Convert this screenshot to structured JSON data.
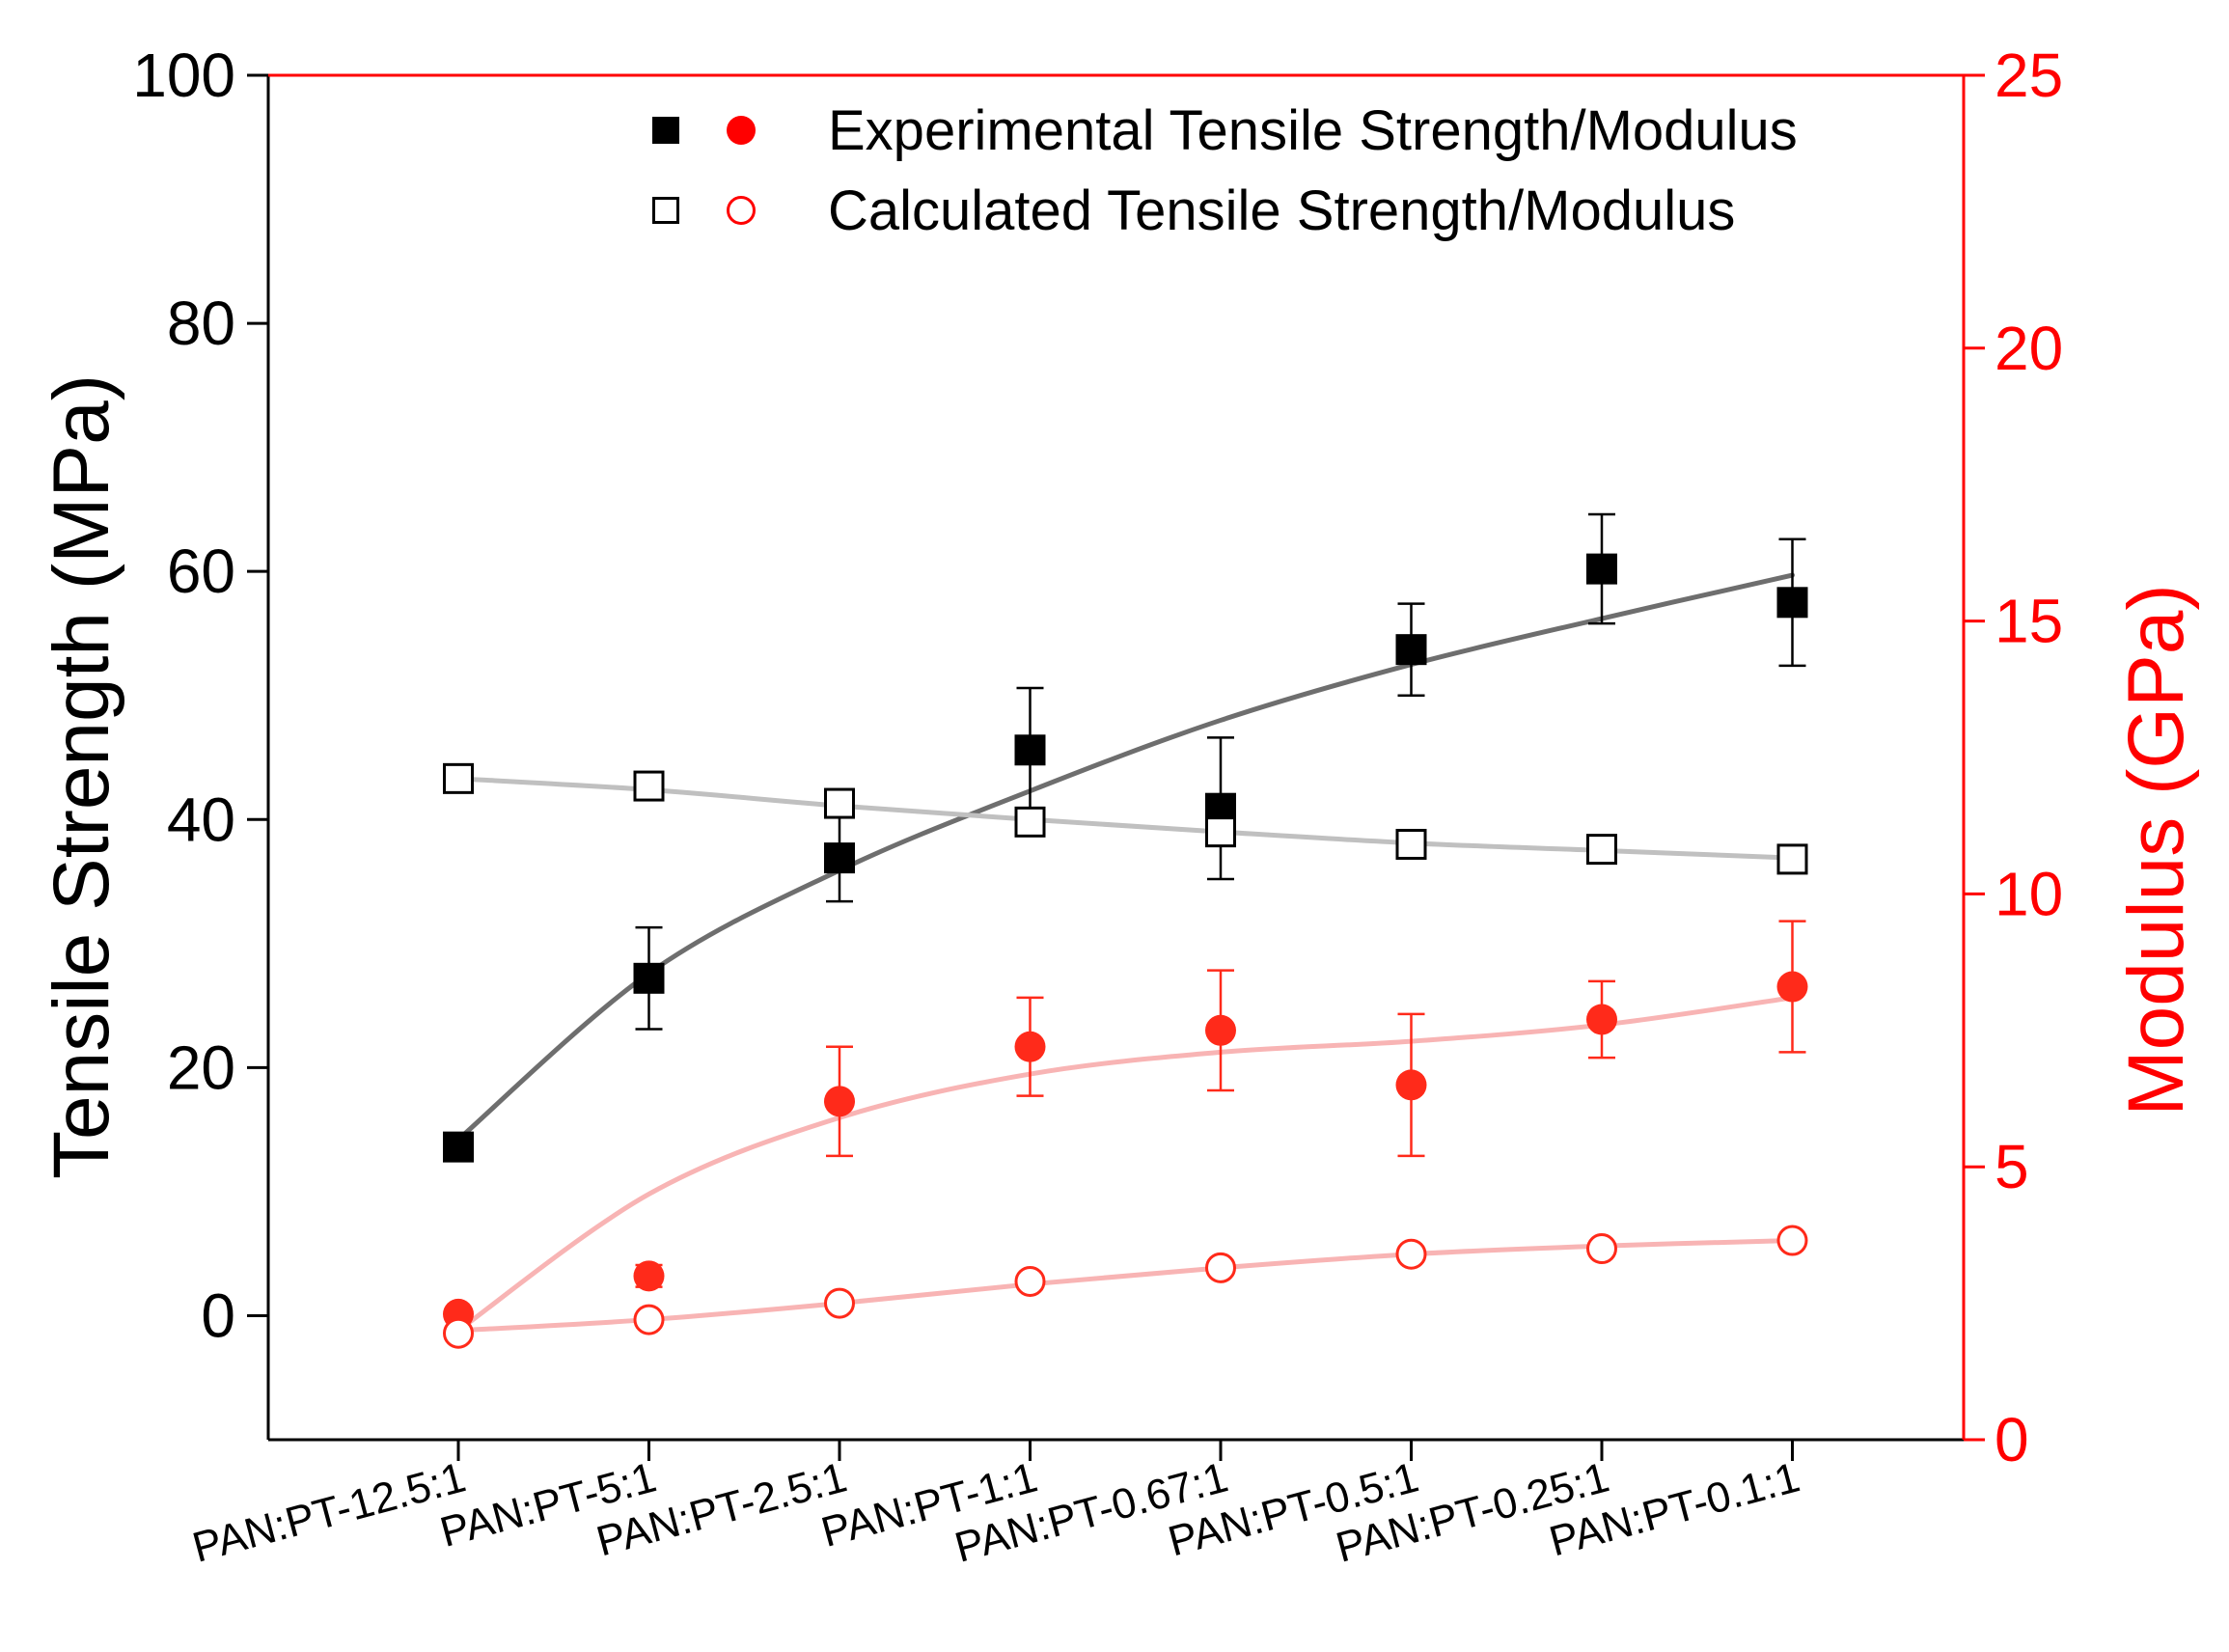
{
  "chart_data": {
    "type": "scatter",
    "categories": [
      "PAN:PT-12.5:1",
      "PAN:PT-5:1",
      "PAN:PT-2.5:1",
      "PAN:PT-1:1",
      "PAN:PT-0.67:1",
      "PAN:PT-0.5:1",
      "PAN:PT-0.25:1",
      "PAN:PT-0.1:1"
    ],
    "y_left": {
      "label": "Tensile Strength (MPa)",
      "range": [
        -10,
        100
      ],
      "ticks": [
        0,
        20,
        40,
        60,
        80,
        100
      ],
      "color": "#000000"
    },
    "y_right": {
      "label": "Modulus (GPa)",
      "range": [
        0,
        25
      ],
      "ticks": [
        0,
        5,
        10,
        15,
        20,
        25
      ],
      "color": "#ff0000"
    },
    "series": [
      {
        "name": "Experimental Tensile Strength",
        "axis": "left",
        "marker": "filled-square",
        "color": "#000000",
        "values": [
          13.6,
          27.2,
          36.9,
          45.6,
          40.9,
          53.7,
          60.2,
          57.5
        ],
        "errors": [
          0,
          4.1,
          3.5,
          5.0,
          5.7,
          3.7,
          4.4,
          5.1
        ]
      },
      {
        "name": "Calculated Tensile Strength",
        "axis": "left",
        "marker": "open-square",
        "color": "#000000",
        "values": [
          43.3,
          42.7,
          41.3,
          39.8,
          39.0,
          38.0,
          37.6,
          36.8
        ],
        "errors": [
          0,
          0,
          0,
          0,
          0,
          0,
          0,
          0
        ]
      },
      {
        "name": "Experimental Modulus",
        "axis": "right",
        "marker": "filled-circle",
        "color": "#ff2a1a",
        "values": [
          2.3,
          3.0,
          6.2,
          7.2,
          7.5,
          6.5,
          7.7,
          8.3
        ],
        "errors": [
          0,
          0.2,
          1.0,
          0.9,
          1.1,
          1.3,
          0.7,
          1.2
        ]
      },
      {
        "name": "Calculated Modulus",
        "axis": "right",
        "marker": "open-circle",
        "color": "#ff2a1a",
        "values": [
          1.95,
          2.2,
          2.5,
          2.9,
          3.15,
          3.4,
          3.5,
          3.65
        ],
        "errors": [
          0,
          0,
          0,
          0,
          0,
          0,
          0,
          0
        ]
      }
    ],
    "fits": [
      {
        "name": "fit-exp-strength",
        "axis": "left",
        "color": "#6e6e6e",
        "values": [
          14.2,
          27.6,
          35.9,
          42.3,
          48.0,
          52.5,
          56.2,
          59.7
        ]
      },
      {
        "name": "fit-calc-strength",
        "axis": "left",
        "color": "#c0c0c0",
        "values": [
          43.3,
          42.4,
          41.1,
          40.0,
          39.0,
          38.1,
          37.5,
          36.9
        ]
      },
      {
        "name": "fit-exp-modulus",
        "axis": "right",
        "color": "#f8b4b4",
        "values": [
          2.0,
          4.5,
          5.9,
          6.7,
          7.1,
          7.3,
          7.6,
          8.1
        ]
      },
      {
        "name": "fit-calc-modulus",
        "axis": "right",
        "color": "#f8b4b4",
        "values": [
          2.0,
          2.2,
          2.5,
          2.85,
          3.15,
          3.4,
          3.55,
          3.65
        ]
      }
    ],
    "legend": {
      "position": "top-right",
      "entries": [
        "Experimental Tensile Strength/Modulus",
        "Calculated Tensile Strength/Modulus"
      ]
    }
  }
}
